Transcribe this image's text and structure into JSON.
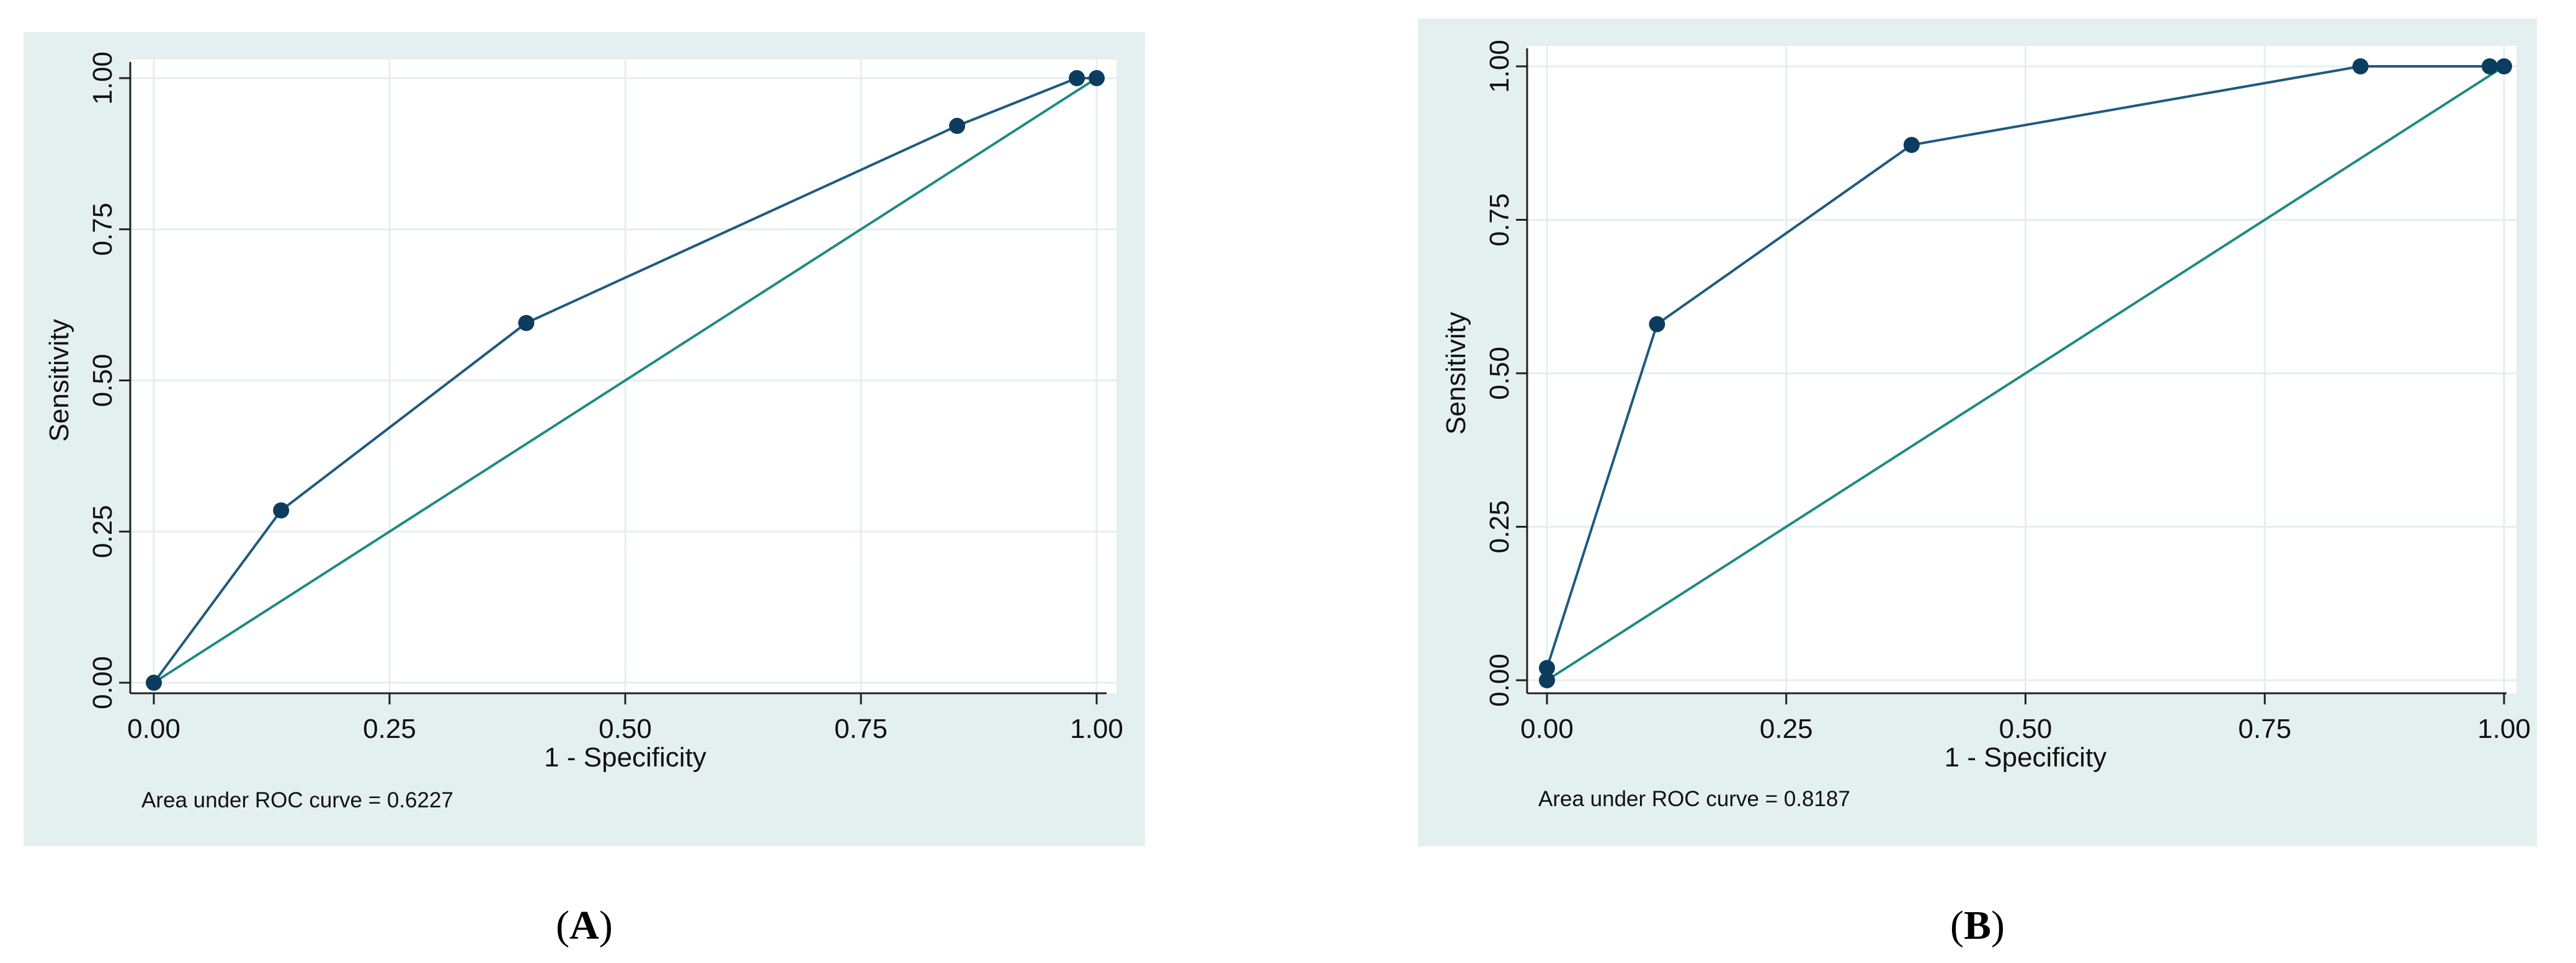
{
  "chart_data": [
    {
      "type": "line",
      "panel": "A",
      "caption_letter": "A",
      "xlabel": "1 - Specificity",
      "ylabel": "Sensitivity",
      "xlim": [
        0,
        1
      ],
      "ylim": [
        0,
        1
      ],
      "x_ticks": [
        "0.00",
        "0.25",
        "0.50",
        "0.75",
        "1.00"
      ],
      "y_ticks": [
        "0.00",
        "0.25",
        "0.50",
        "0.75",
        "1.00"
      ],
      "grid": true,
      "annotation": "Area under ROC curve = 0.6227",
      "series": [
        {
          "x": [
            0.0,
            0.135,
            0.395,
            0.852,
            0.979,
            1.0
          ],
          "y": [
            0.0,
            0.285,
            0.595,
            0.921,
            1.0,
            1.0
          ]
        }
      ],
      "reference_line": {
        "x": [
          0,
          1
        ],
        "y": [
          0,
          1
        ]
      }
    },
    {
      "type": "line",
      "panel": "B",
      "caption_letter": "B",
      "xlabel": "1 - Specificity",
      "ylabel": "Sensitivity",
      "xlim": [
        0,
        1
      ],
      "ylim": [
        0,
        1
      ],
      "x_ticks": [
        "0.00",
        "0.25",
        "0.50",
        "0.75",
        "1.00"
      ],
      "y_ticks": [
        "0.00",
        "0.25",
        "0.50",
        "0.75",
        "1.00"
      ],
      "grid": true,
      "annotation": "Area under ROC curve = 0.8187",
      "series": [
        {
          "x": [
            0.0,
            0.0,
            0.115,
            0.381,
            0.85,
            0.985,
            1.0
          ],
          "y": [
            0.0,
            0.02,
            0.58,
            0.872,
            1.0,
            1.0,
            1.0
          ]
        }
      ],
      "reference_line": {
        "x": [
          0,
          1
        ],
        "y": [
          0,
          1
        ]
      }
    }
  ],
  "colors": {
    "frame_bg": "#e4eff0",
    "plot_bg": "#ffffff",
    "grid": "#e4efef",
    "curve": "#1f5a80",
    "marker": "#0d3d5e",
    "reference": "#1f8a82",
    "axis": "#222222"
  }
}
